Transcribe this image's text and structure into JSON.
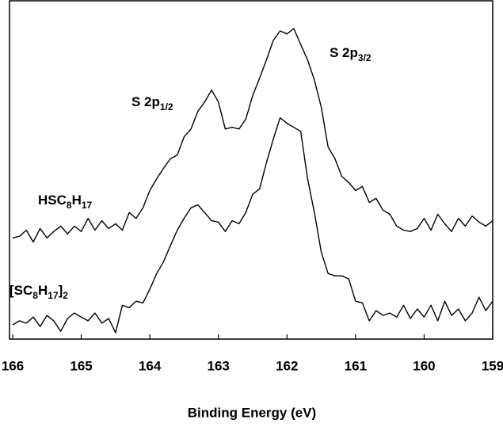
{
  "chart_data": {
    "type": "line",
    "x_label": "Binding Energy (eV)",
    "xlim": [
      166,
      159
    ],
    "xticks": [
      166,
      165,
      164,
      163,
      162,
      161,
      160,
      159
    ],
    "ylim": [
      0,
      100
    ],
    "x": [
      166.0,
      165.9,
      165.8,
      165.7,
      165.6,
      165.5,
      165.4,
      165.3,
      165.2,
      165.1,
      165.0,
      164.9,
      164.8,
      164.7,
      164.6,
      164.5,
      164.4,
      164.3,
      164.2,
      164.1,
      164.0,
      163.9,
      163.8,
      163.7,
      163.6,
      163.5,
      163.4,
      163.3,
      163.2,
      163.1,
      163.0,
      162.9,
      162.8,
      162.7,
      162.6,
      162.5,
      162.4,
      162.3,
      162.2,
      162.1,
      162.0,
      161.9,
      161.8,
      161.7,
      161.6,
      161.5,
      161.4,
      161.3,
      161.2,
      161.1,
      161.0,
      160.9,
      160.8,
      160.7,
      160.6,
      160.5,
      160.4,
      160.3,
      160.2,
      160.1,
      160.0,
      159.9,
      159.8,
      159.7,
      159.6,
      159.5,
      159.4,
      159.3,
      159.2,
      159.1,
      159.0
    ],
    "series": [
      {
        "label": [
          {
            "t": "HSC"
          },
          {
            "t": "8",
            "sub": true
          },
          {
            "t": "H"
          },
          {
            "t": "17",
            "sub": true
          }
        ],
        "color": "#000000",
        "values": [
          29.9,
          30.4,
          32.2,
          28.7,
          32.7,
          29.9,
          31.8,
          33.4,
          31.1,
          33.4,
          31.8,
          35.7,
          32.2,
          35.0,
          32.7,
          34.1,
          32.2,
          37.4,
          35.7,
          38.8,
          43.9,
          47.4,
          50.5,
          53.3,
          54.4,
          59.8,
          62.1,
          67.3,
          70.1,
          73.6,
          70.1,
          62.1,
          62.6,
          62.1,
          65.0,
          72.0,
          77.1,
          82.5,
          88.3,
          91.1,
          90.2,
          91.8,
          87.1,
          82.5,
          76.6,
          68.5,
          56.8,
          53.3,
          48.1,
          46.3,
          43.9,
          45.1,
          40.4,
          41.6,
          38.1,
          36.9,
          33.4,
          32.2,
          31.8,
          32.7,
          35.7,
          32.2,
          36.9,
          34.1,
          31.8,
          35.7,
          33.4,
          36.4,
          34.6,
          33.4,
          35.0
        ]
      },
      {
        "label": [
          {
            "t": "[SC"
          },
          {
            "t": "8",
            "sub": true
          },
          {
            "t": "H"
          },
          {
            "t": "17",
            "sub": true
          },
          {
            "t": "]"
          },
          {
            "t": "2",
            "sub": true
          }
        ],
        "color": "#000000",
        "values": [
          4.2,
          5.4,
          4.7,
          6.5,
          3.7,
          7.0,
          5.4,
          2.3,
          6.1,
          7.7,
          6.5,
          5.4,
          7.7,
          4.7,
          6.1,
          1.9,
          10.0,
          9.3,
          11.2,
          10.7,
          14.7,
          19.4,
          22.9,
          27.6,
          32.2,
          35.7,
          38.8,
          39.7,
          37.4,
          35.0,
          34.6,
          31.8,
          35.0,
          34.1,
          37.4,
          42.8,
          44.4,
          52.1,
          59.1,
          65.4,
          63.8,
          62.6,
          61.4,
          47.4,
          37.4,
          25.7,
          19.4,
          18.7,
          18.7,
          17.8,
          11.2,
          10.7,
          5.4,
          8.4,
          7.0,
          7.7,
          6.5,
          10.0,
          6.1,
          8.9,
          6.5,
          10.0,
          5.4,
          11.2,
          7.0,
          8.9,
          5.4,
          7.7,
          12.4,
          8.4,
          11.2
        ]
      }
    ],
    "annotations": [
      [
        {
          "t": "S 2p"
        },
        {
          "t": "1/2",
          "sub": true
        }
      ],
      [
        {
          "t": "S 2p"
        },
        {
          "t": "3/2",
          "sub": true
        }
      ]
    ]
  }
}
